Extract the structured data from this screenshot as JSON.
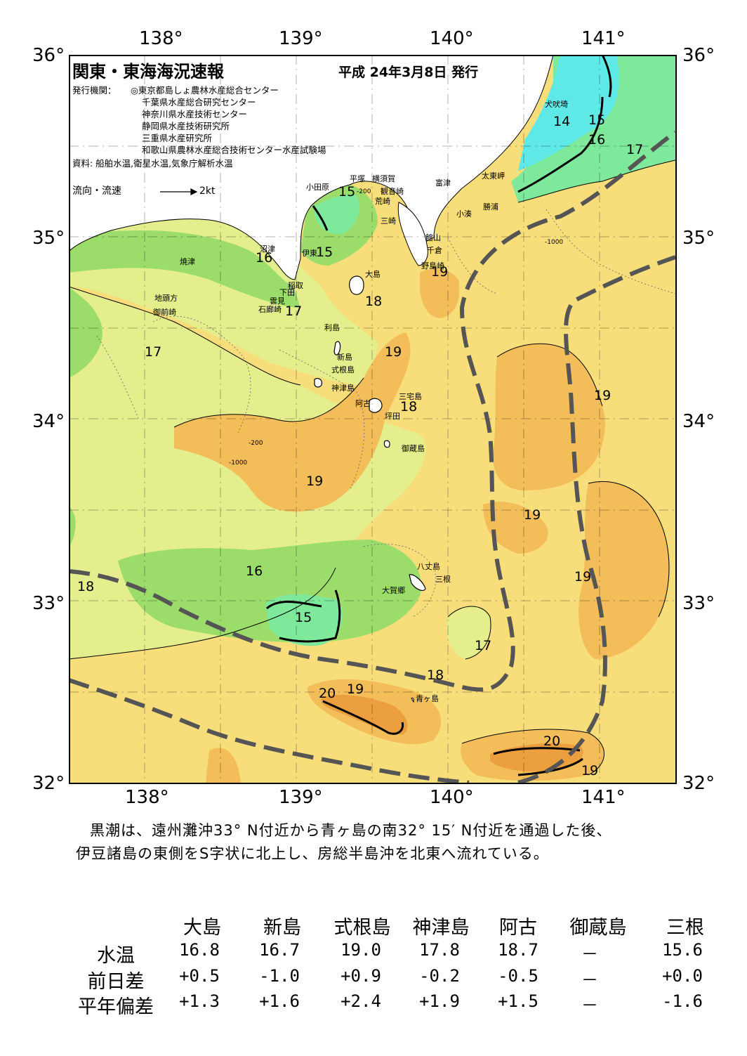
{
  "map": {
    "title": "関東・東海海況速報",
    "pub_date": "平成 24年3月8日 発行",
    "issuers_label": "発行機関：",
    "issuers": [
      "◎東京都島しょ農林水産総合センター",
      "千葉県水産総合研究センター",
      "神奈川県水産技術センター",
      "静岡県水産技術研究所",
      "三重県水産研究所",
      "和歌山県農林水産総合技術センター水産試験場"
    ],
    "source": "資料: 船舶水温,衛星水温,気象庁解析水温",
    "flow_legend": "流向・流速",
    "flow_unit": "2kt",
    "lon_ticks": [
      "138°",
      "139°",
      "140°",
      "141°"
    ],
    "lat_ticks": [
      "36°",
      "35°",
      "34°",
      "33°",
      "32°"
    ],
    "place_names": [
      "犬吠埼",
      "太東岬",
      "勝浦",
      "小湊",
      "富津",
      "館山",
      "千倉",
      "野島崎",
      "横須賀",
      "観音崎",
      "荒崎",
      "三崎",
      "平塚",
      "小田原",
      "沼津",
      "伊東",
      "焼津",
      "稲取",
      "下田",
      "雲見",
      "石廊崎",
      "地頭方",
      "御前崎",
      "大島",
      "利島",
      "新島",
      "式根島",
      "神津島",
      "阿古",
      "坪田",
      "三宅島",
      "御蔵島",
      "八丈島",
      "三根",
      "大賀郷",
      "青ヶ島"
    ],
    "isotherm_labels": [
      "14",
      "15",
      "16",
      "17",
      "15",
      "16",
      "15",
      "17",
      "18",
      "19",
      "17",
      "19",
      "18",
      "19",
      "19",
      "19",
      "19",
      "16",
      "15",
      "18",
      "17",
      "18",
      "20",
      "19",
      "20",
      "19"
    ],
    "depth_labels": [
      "-200",
      "-1000"
    ],
    "colors": {
      "t14": "#5fe9e6",
      "t15": "#7ee89b",
      "t16": "#9bdc6a",
      "t17": "#e4ee8c",
      "t18": "#f8de7a",
      "t19": "#f3bd5a",
      "t20": "#ec9f3e",
      "land": "#ffffff",
      "kuroshio": "#555555"
    }
  },
  "summary": {
    "line1": "黒潮は、遠州灘沖33° N付近から青ヶ島の南32° 15′ N付近を通過した後、",
    "line2": "伊豆諸島の東側をS字状に北上し、房総半島沖を北東へ流れている。"
  },
  "table": {
    "islands": [
      "大島",
      "新島",
      "式根島",
      "神津島",
      "阿古",
      "御蔵島",
      "三根"
    ],
    "rows": [
      {
        "label": "水温",
        "values": [
          "16.8",
          "16.7",
          "19.0",
          "17.8",
          "18.7",
          "－",
          "15.6"
        ]
      },
      {
        "label": "前日差",
        "values": [
          "+0.5",
          "-1.0",
          "+0.9",
          "-0.2",
          "-0.5",
          "－",
          "+0.0"
        ]
      },
      {
        "label": "平年偏差",
        "values": [
          "+1.3",
          "+1.6",
          "+2.4",
          "+1.9",
          "+1.5",
          "－",
          "-1.6"
        ]
      }
    ]
  }
}
